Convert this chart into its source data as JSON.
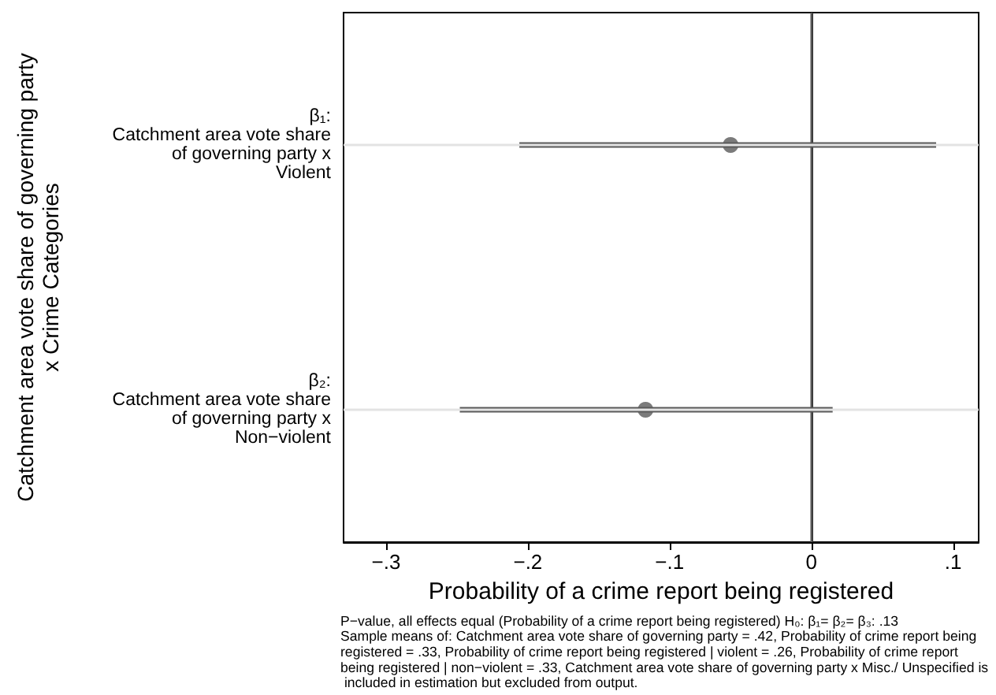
{
  "chart_data": {
    "type": "scatter",
    "orientation": "horizontal",
    "ylabel": "Catchment area vote share of governing party\nx Crime Categories",
    "xlabel": "Probability of a crime report being registered",
    "categories": [
      "β₁:\nCatchment area vote share\nof governing party x\nViolent",
      "β₂:\nCatchment area vote share\nof governing party x\nNon−violent"
    ],
    "values": [
      -0.057,
      -0.117
    ],
    "errors": [
      [
        -0.206,
        0.088
      ],
      [
        -0.248,
        0.015
      ]
    ],
    "color": "#5a5a5a",
    "xlim": [
      -0.33,
      0.118
    ],
    "xticks": [
      {
        "value": -0.3,
        "label": "−.3"
      },
      {
        "value": -0.2,
        "label": "−.2"
      },
      {
        "value": -0.1,
        "label": "−.1"
      },
      {
        "value": 0,
        "label": "0"
      },
      {
        "value": 0.1,
        "label": ".1"
      }
    ],
    "ref_lines": [
      {
        "axis": "x",
        "value": 0,
        "color": "#555555"
      }
    ],
    "grid": "y",
    "marker": "circle",
    "annotations": [
      "P−value, all effects equal (Probability of a crime report being registered) H₀: β₁= β₂= β₃: .13\nSample means of: Catchment area vote share of governing party = .42, Probability of crime report being registered = .33, Probability of crime report being registered | violent = .26, Probability of crime report being registered | non−violent = .33, Catchment area vote share of governing party x Misc./ Unspecified is included in estimation but excluded from output."
    ]
  }
}
